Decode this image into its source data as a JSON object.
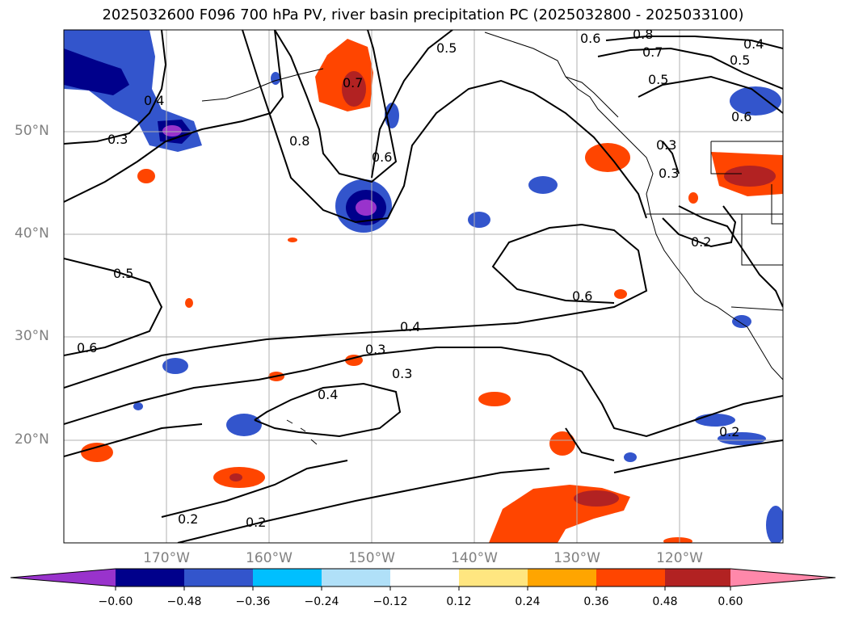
{
  "title": "2025032600 F096 700 hPa PV, river basin precipitation PC (2025032800 - 2025033100)",
  "lat_labels": [
    "50°N",
    "40°N",
    "30°N",
    "20°N"
  ],
  "lon_labels": [
    "170°W",
    "160°W",
    "150°W",
    "140°W",
    "130°W",
    "120°W"
  ],
  "contour_labels": [
    "0.5",
    "0.6",
    "0.8",
    "0.7",
    "0.4",
    "0.5",
    "0.5",
    "0.6",
    "0.3",
    "0.4",
    "0.8",
    "0.7",
    "0.6",
    "0.3",
    "0.3",
    "0.2",
    "0.5",
    "0.6",
    "0.6",
    "0.4",
    "0.3",
    "0.3",
    "0.4",
    "0.2",
    "0.2",
    "0.2"
  ],
  "colorbar": {
    "ticks": [
      "−0.60",
      "−0.48",
      "−0.36",
      "−0.24",
      "−0.12",
      "0.12",
      "0.24",
      "0.36",
      "0.48",
      "0.60"
    ],
    "colors": [
      "#9933cc",
      "#00008b",
      "#3355cc",
      "#00bfff",
      "#b0e0f8",
      "#ffffff",
      "#ffe680",
      "#ffa500",
      "#ff4500",
      "#b22222",
      "#ff88aa"
    ]
  }
}
